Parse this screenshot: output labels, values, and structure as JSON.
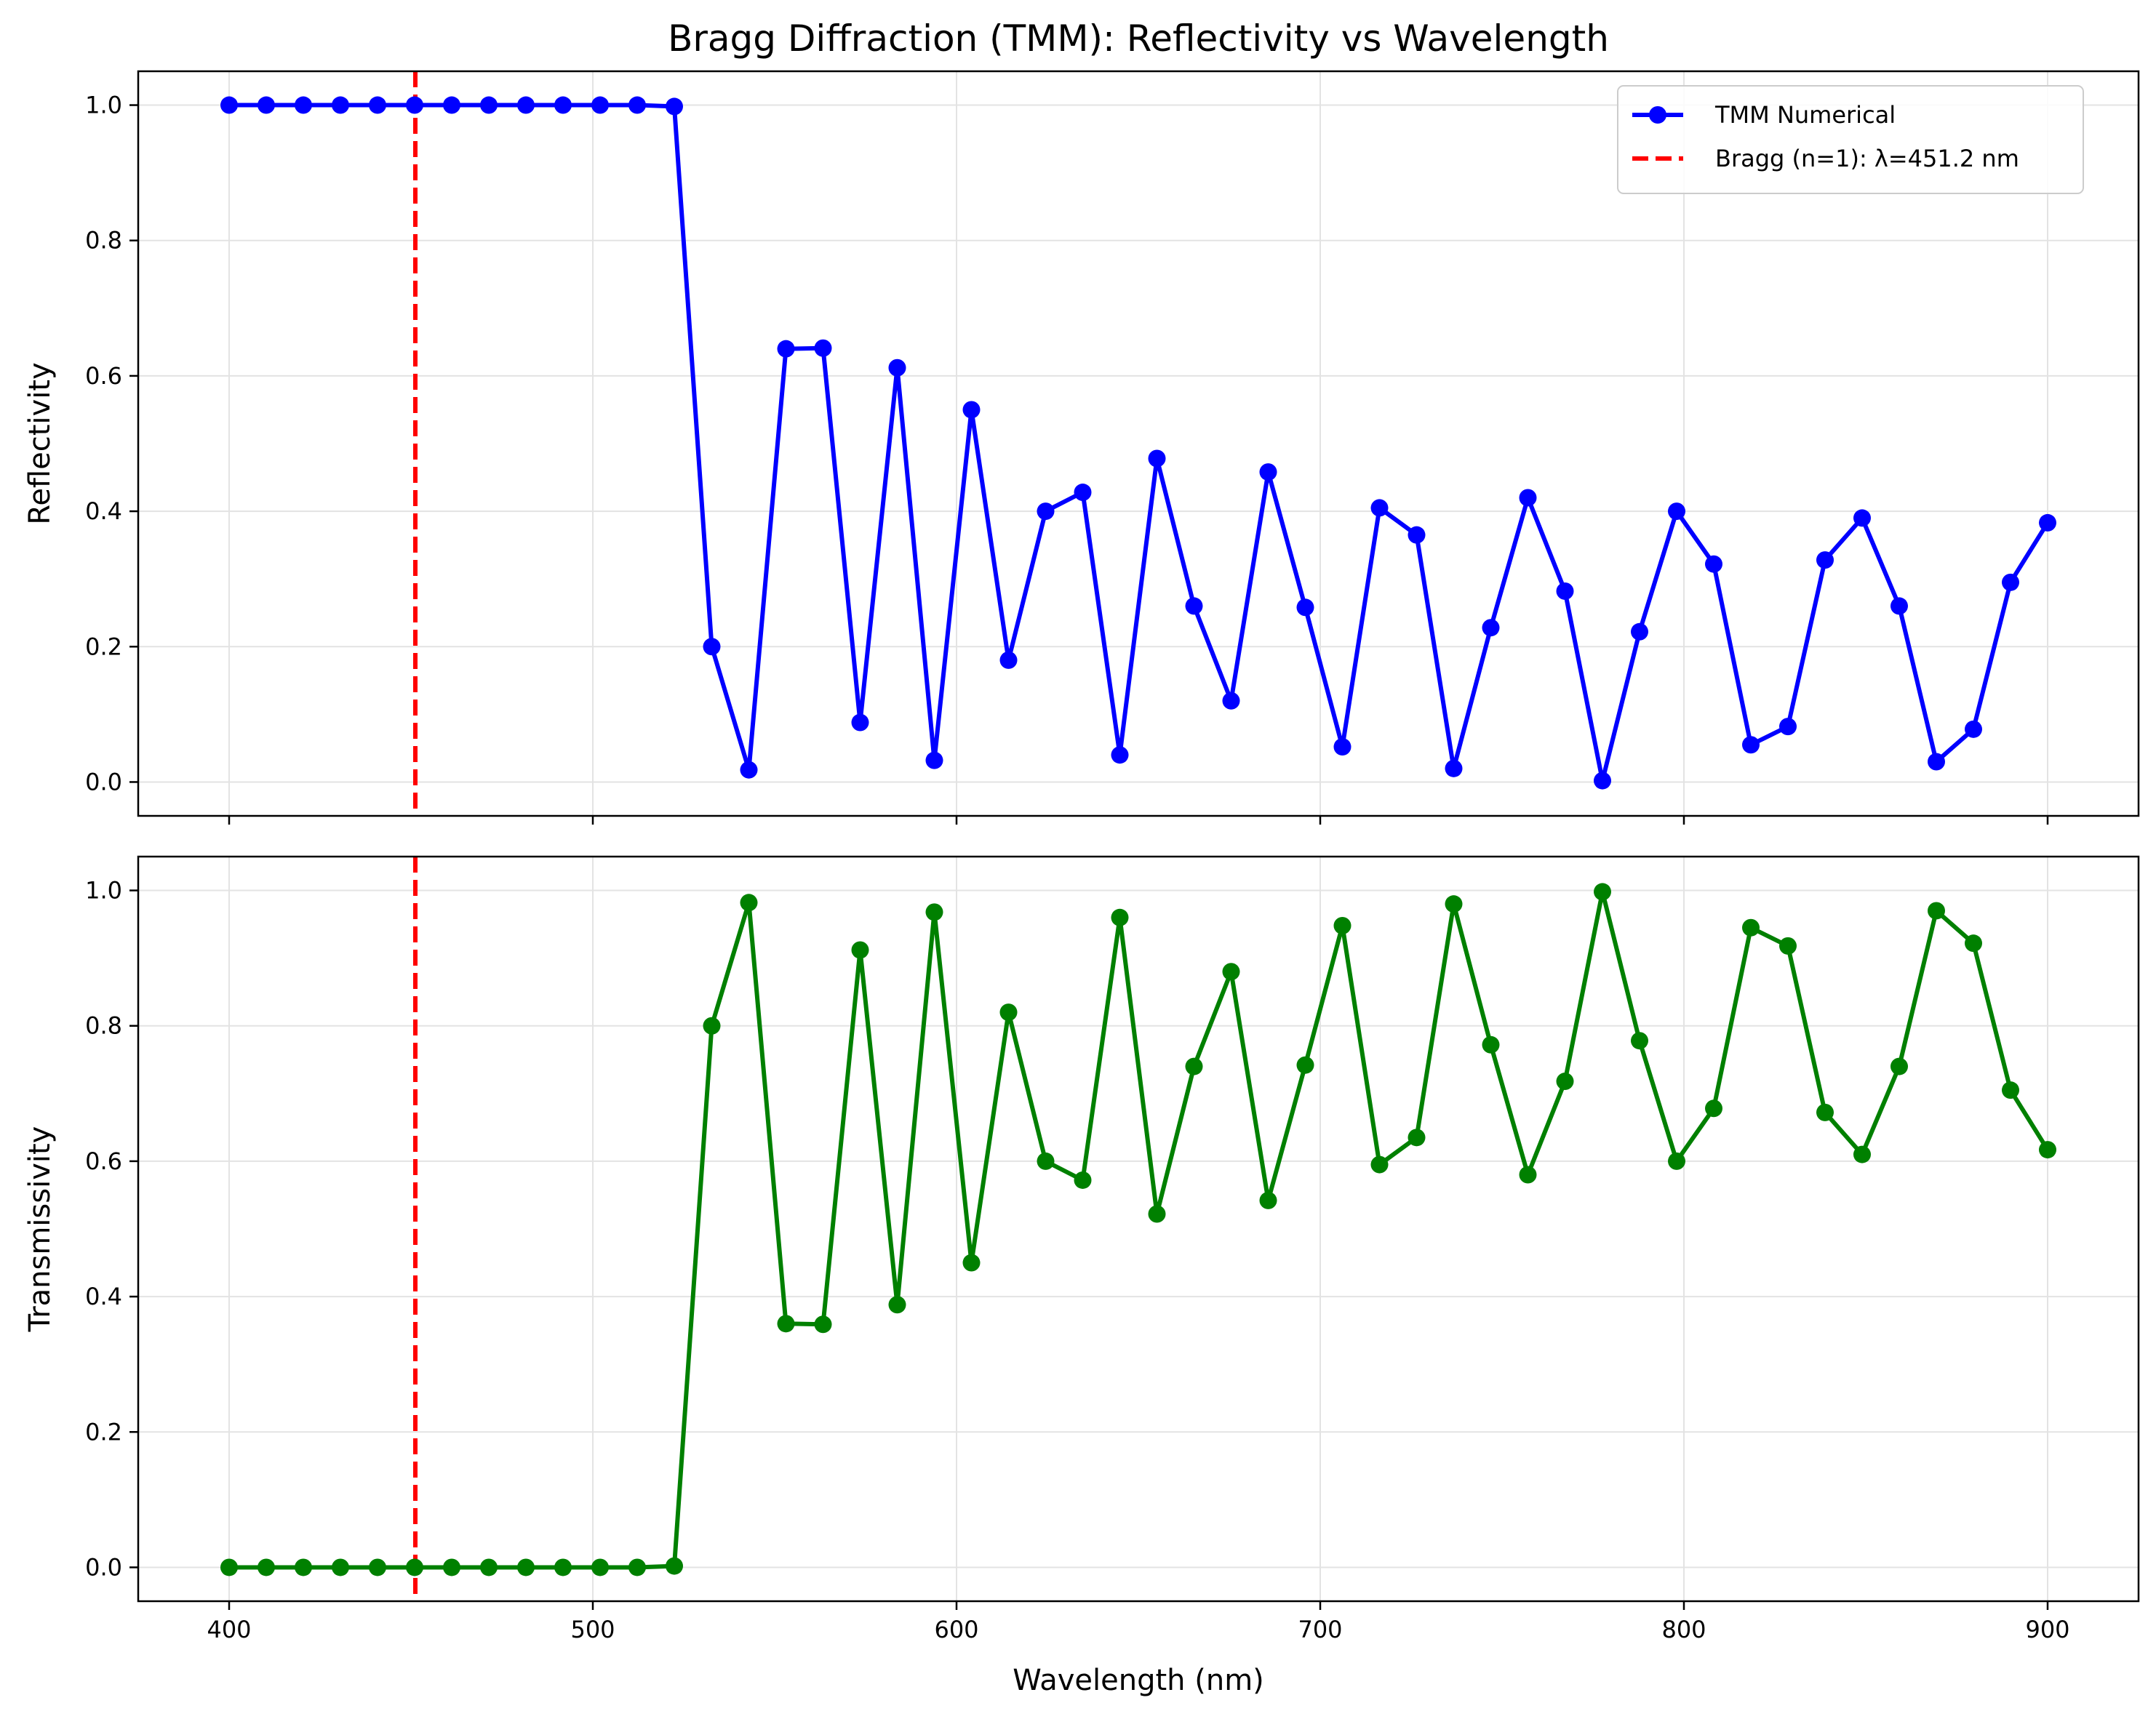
{
  "figure": {
    "title": "Bragg Diffraction (TMM): Reflectivity vs Wavelength"
  },
  "chart_data": [
    {
      "type": "line",
      "title": "Bragg Diffraction (TMM): Reflectivity vs Wavelength",
      "xlabel": "",
      "ylabel": "Reflectivity",
      "xlim": [
        375,
        925
      ],
      "ylim": [
        -0.05,
        1.05
      ],
      "xticks": [
        "400",
        "500",
        "600",
        "700",
        "800",
        "900"
      ],
      "yticks": [
        "0.0",
        "0.2",
        "0.4",
        "0.6",
        "0.8",
        "1.0"
      ],
      "grid": true,
      "legend_position": "top-right",
      "x": [
        400,
        410.2,
        420.4,
        430.6,
        440.8,
        451.0,
        461.2,
        471.4,
        481.6,
        491.8,
        502.0,
        512.2,
        522.4,
        532.7,
        542.9,
        553.1,
        563.3,
        573.5,
        583.7,
        593.9,
        604.1,
        614.3,
        624.5,
        634.7,
        644.9,
        655.1,
        665.3,
        675.5,
        685.7,
        695.9,
        706.1,
        716.3,
        726.5,
        736.7,
        746.9,
        757.1,
        767.3,
        777.6,
        787.8,
        798.0,
        808.2,
        818.4,
        828.6,
        838.8,
        849.0,
        859.2,
        869.4,
        879.6,
        889.8,
        900.0
      ],
      "series": [
        {
          "name": "TMM Numerical",
          "color": "#0000ff",
          "marker": "circle",
          "values": [
            1.0,
            1.0,
            1.0,
            1.0,
            1.0,
            1.0,
            1.0,
            1.0,
            1.0,
            1.0,
            1.0,
            1.0,
            0.998,
            0.2,
            0.018,
            0.64,
            0.641,
            0.088,
            0.612,
            0.032,
            0.55,
            0.18,
            0.4,
            0.428,
            0.04,
            0.478,
            0.26,
            0.12,
            0.458,
            0.258,
            0.052,
            0.405,
            0.365,
            0.02,
            0.228,
            0.42,
            0.282,
            0.002,
            0.222,
            0.4,
            0.322,
            0.055,
            0.082,
            0.328,
            0.39,
            0.26,
            0.03,
            0.078,
            0.295,
            0.383
          ]
        }
      ],
      "reference_lines": [
        {
          "name": "Bragg (n=1): λ=451.2 nm",
          "x": 451.2,
          "color": "#ff0000",
          "style": "dashed"
        }
      ]
    },
    {
      "type": "line",
      "title": "",
      "xlabel": "Wavelength (nm)",
      "ylabel": "Transmissivity",
      "xlim": [
        375,
        925
      ],
      "ylim": [
        -0.05,
        1.05
      ],
      "xticks": [
        "400",
        "500",
        "600",
        "700",
        "800",
        "900"
      ],
      "yticks": [
        "0.0",
        "0.2",
        "0.4",
        "0.6",
        "0.8",
        "1.0"
      ],
      "grid": true,
      "x": [
        400,
        410.2,
        420.4,
        430.6,
        440.8,
        451.0,
        461.2,
        471.4,
        481.6,
        491.8,
        502.0,
        512.2,
        522.4,
        532.7,
        542.9,
        553.1,
        563.3,
        573.5,
        583.7,
        593.9,
        604.1,
        614.3,
        624.5,
        634.7,
        644.9,
        655.1,
        665.3,
        675.5,
        685.7,
        695.9,
        706.1,
        716.3,
        726.5,
        736.7,
        746.9,
        757.1,
        767.3,
        777.6,
        787.8,
        798.0,
        808.2,
        818.4,
        828.6,
        838.8,
        849.0,
        859.2,
        869.4,
        879.6,
        889.8,
        900.0
      ],
      "series": [
        {
          "color": "#008000",
          "marker": "circle",
          "values": [
            0.0,
            0.0,
            0.0,
            0.0,
            0.0,
            0.0,
            0.0,
            0.0,
            0.0,
            0.0,
            0.0,
            0.0,
            0.002,
            0.8,
            0.982,
            0.36,
            0.359,
            0.912,
            0.388,
            0.968,
            0.45,
            0.82,
            0.6,
            0.572,
            0.96,
            0.522,
            0.74,
            0.88,
            0.542,
            0.742,
            0.948,
            0.595,
            0.635,
            0.98,
            0.772,
            0.58,
            0.718,
            0.998,
            0.778,
            0.6,
            0.678,
            0.945,
            0.918,
            0.672,
            0.61,
            0.74,
            0.97,
            0.922,
            0.705,
            0.617
          ]
        }
      ],
      "reference_lines": [
        {
          "x": 451.2,
          "color": "#ff0000",
          "style": "dashed"
        }
      ]
    }
  ]
}
